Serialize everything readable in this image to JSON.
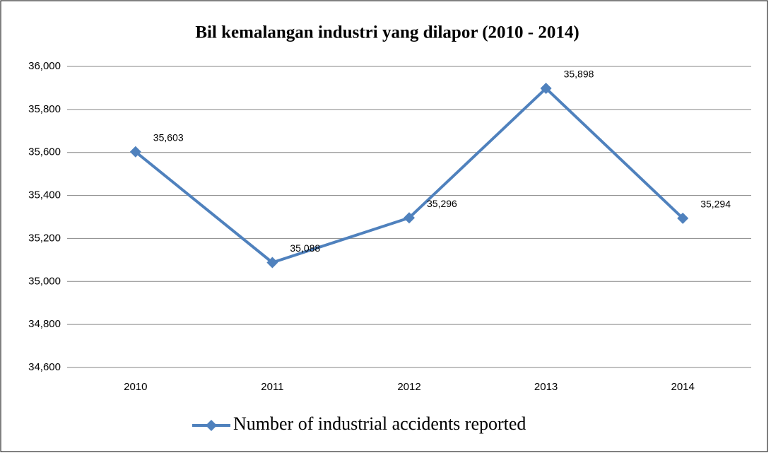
{
  "chart_data": {
    "type": "line",
    "title": "Bil kemalangan industri yang dilapor (2010 - 2014)",
    "categories": [
      "2010",
      "2011",
      "2012",
      "2013",
      "2014"
    ],
    "series": [
      {
        "name": "Number of industrial accidents reported",
        "color": "#4f81bd",
        "values": [
          35603,
          35088,
          35296,
          35898,
          35294
        ],
        "value_labels": [
          "35,603",
          "35,088",
          "35,296",
          "35,898",
          "35,294"
        ]
      }
    ],
    "ylim": [
      34600,
      36000
    ],
    "yticks": [
      {
        "value": 34600,
        "label": "34,600"
      },
      {
        "value": 34800,
        "label": "34,800"
      },
      {
        "value": 35000,
        "label": "35,000"
      },
      {
        "value": 35200,
        "label": "35,200"
      },
      {
        "value": 35400,
        "label": "35,400"
      },
      {
        "value": 35600,
        "label": "35,600"
      },
      {
        "value": 35800,
        "label": "35,800"
      },
      {
        "value": 36000,
        "label": "36,000"
      }
    ],
    "grid": true,
    "legend": "bottom"
  }
}
